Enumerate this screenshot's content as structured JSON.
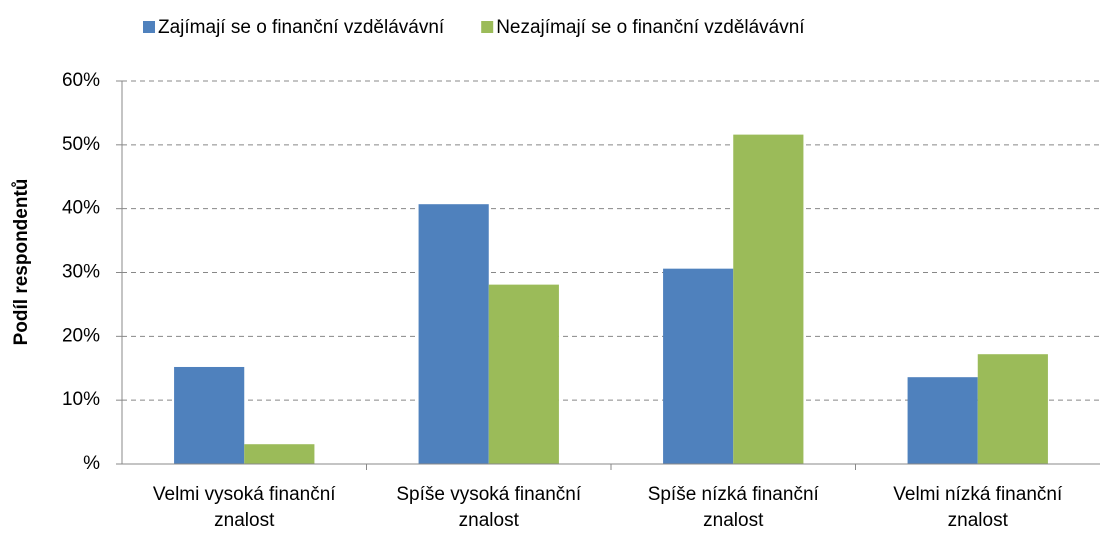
{
  "chart_data": {
    "type": "bar",
    "y_label": "Podíl respondentů",
    "categories": [
      "Velmi vysoká finanční znalost",
      "Spíše vysoká finanční znalost",
      "Spíše nízká finanční znalost",
      "Velmi nízká finanční znalost"
    ],
    "series": [
      {
        "name": "Zajímají se o finanční vzdělávávní",
        "color": "#4f81bd",
        "values": [
          15.2,
          40.7,
          30.6,
          13.6
        ]
      },
      {
        "name": "Nezajímají se o finanční vzdělávávní",
        "color": "#9bbb59",
        "values": [
          3.1,
          28.1,
          51.6,
          17.2
        ]
      }
    ],
    "ylim": [
      0,
      60
    ],
    "yticks": [
      {
        "value": 0,
        "label": "%"
      },
      {
        "value": 10,
        "label": "10%"
      },
      {
        "value": 20,
        "label": "20%"
      },
      {
        "value": 30,
        "label": "30%"
      },
      {
        "value": 40,
        "label": "40%"
      },
      {
        "value": 50,
        "label": "50%"
      },
      {
        "value": 60,
        "label": "60%"
      }
    ],
    "grid": true,
    "legend": "top"
  }
}
